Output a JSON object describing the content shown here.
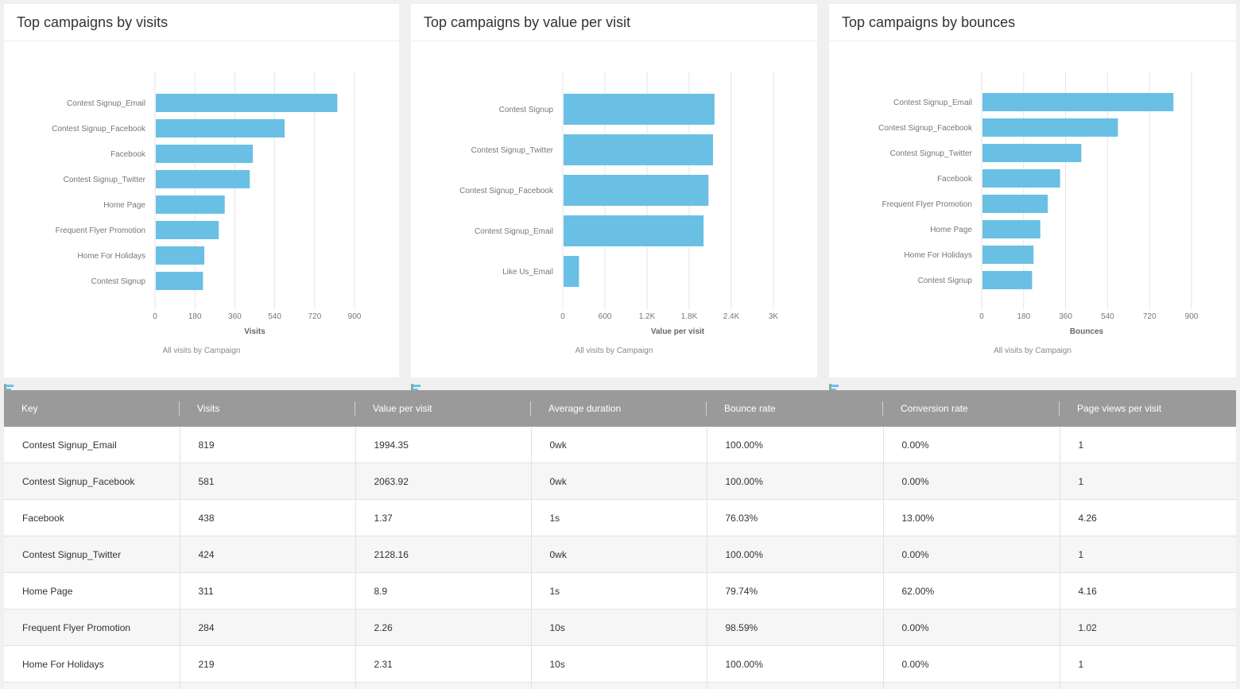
{
  "chart_data": [
    {
      "type": "bar",
      "orientation": "horizontal",
      "title": "Top campaigns by visits",
      "categories": [
        "Contest Signup_Email",
        "Contest Signup_Facebook",
        "Facebook",
        "Contest Signup_Twitter",
        "Home Page",
        "Frequent Flyer Promotion",
        "Home For Holidays",
        "Contest Signup"
      ],
      "values": [
        819,
        581,
        438,
        424,
        311,
        284,
        219,
        213
      ],
      "xlabel": "Visits",
      "xlim": [
        0,
        900
      ],
      "xticks": [
        "0",
        "180",
        "360",
        "540",
        "720",
        "900"
      ],
      "tick_values": [
        0,
        180,
        360,
        540,
        720,
        900
      ],
      "legend": "All visits by Campaign",
      "color": "#6ac0e4"
    },
    {
      "type": "bar",
      "orientation": "horizontal",
      "title": "Top campaigns by value per visit",
      "categories": [
        "Contest Signup",
        "Contest Signup_Twitter",
        "Contest Signup_Facebook",
        "Contest Signup_Email",
        "Like Us_Email"
      ],
      "values": [
        2150,
        2128.16,
        2063.92,
        1994.35,
        220
      ],
      "xlabel": "Value per visit",
      "xlim": [
        0,
        3000
      ],
      "xticks": [
        "0",
        "600",
        "1.2K",
        "1.8K",
        "2.4K",
        "3K"
      ],
      "tick_values": [
        0,
        600,
        1200,
        1800,
        2400,
        3000
      ],
      "legend": "All visits by Campaign",
      "color": "#6ac0e4"
    },
    {
      "type": "bar",
      "orientation": "horizontal",
      "title": "Top campaigns by bounces",
      "categories": [
        "Contest Signup_Email",
        "Contest Signup_Facebook",
        "Contest Signup_Twitter",
        "Facebook",
        "Frequent Flyer Promotion",
        "Home Page",
        "Home For Holidays",
        "Contest Signup"
      ],
      "values": [
        819,
        581,
        424,
        333,
        280,
        248,
        219,
        213
      ],
      "xlabel": "Bounces",
      "xlim": [
        0,
        900
      ],
      "xticks": [
        "0",
        "180",
        "360",
        "540",
        "720",
        "900"
      ],
      "tick_values": [
        0,
        180,
        360,
        540,
        720,
        900
      ],
      "legend": "All visits by Campaign",
      "color": "#6ac0e4"
    }
  ],
  "table": {
    "columns": [
      "Key",
      "Visits",
      "Value per visit",
      "Average duration",
      "Bounce rate",
      "Conversion rate",
      "Page views per visit"
    ],
    "rows": [
      [
        "Contest Signup_Email",
        "819",
        "1994.35",
        "0wk",
        "100.00%",
        "0.00%",
        "1"
      ],
      [
        "Contest Signup_Facebook",
        "581",
        "2063.92",
        "0wk",
        "100.00%",
        "0.00%",
        "1"
      ],
      [
        "Facebook",
        "438",
        "1.37",
        "1s",
        "76.03%",
        "13.00%",
        "4.26"
      ],
      [
        "Contest Signup_Twitter",
        "424",
        "2128.16",
        "0wk",
        "100.00%",
        "0.00%",
        "1"
      ],
      [
        "Home Page",
        "311",
        "8.9",
        "1s",
        "79.74%",
        "62.00%",
        "4.16"
      ],
      [
        "Frequent Flyer Promotion",
        "284",
        "2.26",
        "10s",
        "98.59%",
        "0.00%",
        "1.02"
      ],
      [
        "Home For Holidays",
        "219",
        "2.31",
        "10s",
        "100.00%",
        "0.00%",
        "1"
      ],
      [
        "",
        "",
        "",
        "",
        "",
        "",
        ""
      ]
    ]
  },
  "colors": {
    "bar": "#6ac0e4",
    "header_bg": "#9a9a9a",
    "page_bg": "#f0f0f0"
  },
  "icons": {
    "legend": "bar-chart-legend-icon"
  }
}
